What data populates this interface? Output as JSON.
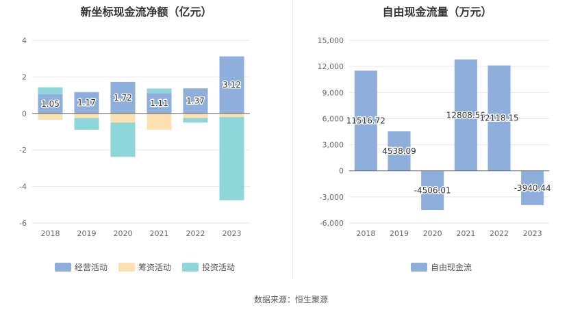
{
  "chart_data": [
    {
      "type": "bar",
      "stacked": true,
      "title": "新坐标现金流净额（亿元）",
      "categories": [
        "2018",
        "2019",
        "2020",
        "2021",
        "2022",
        "2023"
      ],
      "series": [
        {
          "name": "经营活动",
          "color": "#8eaedb",
          "values": [
            1.05,
            1.17,
            1.72,
            1.11,
            1.37,
            3.12
          ],
          "labels": [
            "1.05",
            "1.17",
            "1.72",
            "1.11",
            "1.37",
            "3.12"
          ]
        },
        {
          "name": "筹资活动",
          "color": "#fde0b0",
          "values": [
            -0.35,
            -0.25,
            -0.5,
            -0.9,
            -0.25,
            -0.2
          ]
        },
        {
          "name": "投资活动",
          "color": "#8ed6d9",
          "values": [
            0.38,
            -0.65,
            -1.88,
            0.25,
            -0.25,
            -4.55
          ]
        }
      ],
      "ylim": [
        -6,
        4
      ],
      "yticks": [
        -6,
        -4,
        -2,
        0,
        2,
        4
      ],
      "grid": true,
      "legend_position": "bottom"
    },
    {
      "type": "bar",
      "title": "自由现金流量（万元）",
      "categories": [
        "2018",
        "2019",
        "2020",
        "2021",
        "2022",
        "2023"
      ],
      "series": [
        {
          "name": "自由现金流",
          "color": "#8eaedb",
          "values": [
            11516.72,
            4538.09,
            -4506.01,
            12808.56,
            12118.15,
            -3940.44
          ],
          "labels": [
            "11516.72",
            "4538.09",
            "-4506.01",
            "12808.56",
            "12118.15",
            "-3940.44"
          ]
        }
      ],
      "ylim": [
        -6000,
        15000
      ],
      "yticks": [
        -6000,
        -3000,
        0,
        3000,
        6000,
        9000,
        12000,
        15000
      ],
      "ytick_labels": [
        "-6,000",
        "-3,000",
        "0",
        "3,000",
        "6,000",
        "9,000",
        "12,000",
        "15,000"
      ],
      "grid": true,
      "legend_position": "bottom"
    }
  ],
  "footer": {
    "source": "数据来源：恒生聚源"
  }
}
